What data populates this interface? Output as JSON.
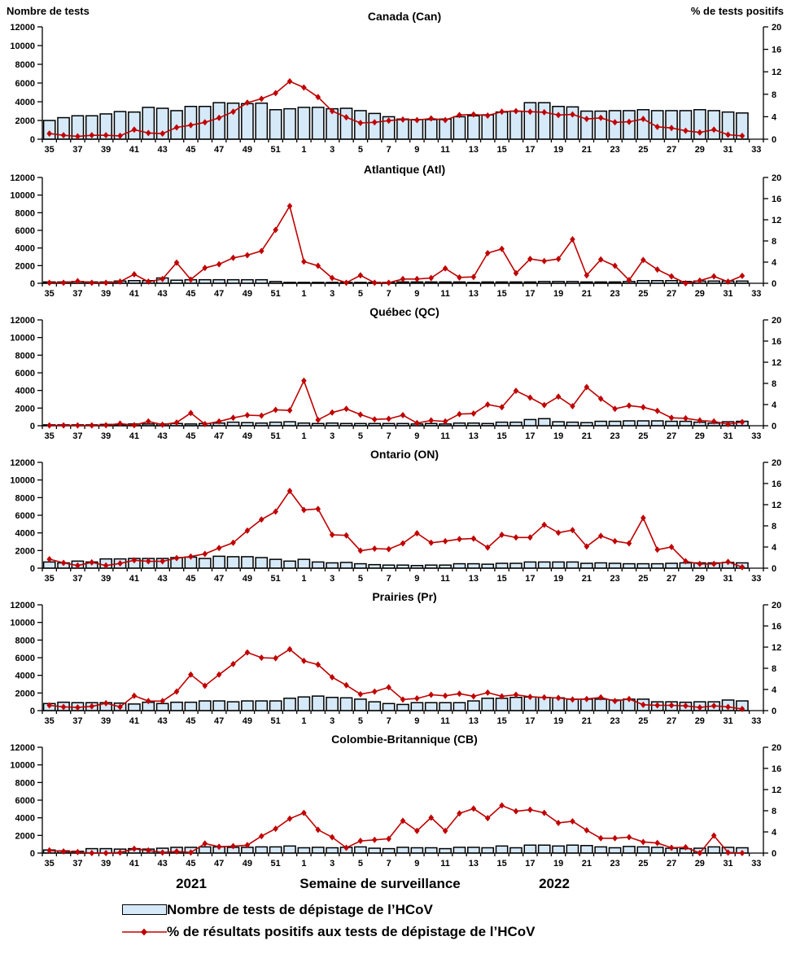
{
  "header": {
    "left": "Nombre de tests",
    "right": "% de tests positifs"
  },
  "bottom": {
    "year_left": "2021",
    "axis_title": "Semaine de surveillance",
    "year_right": "2022"
  },
  "legend": {
    "tests_label": "Nombre de tests de dépistage de l’HCoV",
    "pct_label": "% de résultats positifs aux tests de dépistage de l’HCoV"
  },
  "colors": {
    "bar_fill": "#d6e9f8",
    "bar_stroke": "#000000",
    "line": "#c00000"
  },
  "chart_data": {
    "type": "bar+line",
    "x_label": "Semaine de surveillance",
    "x_weeks": [
      35,
      36,
      37,
      38,
      39,
      40,
      41,
      42,
      43,
      44,
      45,
      46,
      47,
      48,
      49,
      50,
      51,
      52,
      1,
      2,
      3,
      4,
      5,
      6,
      7,
      8,
      9,
      10,
      11,
      12,
      13,
      14,
      15,
      16,
      17,
      18,
      19,
      20,
      21,
      22,
      23,
      24,
      25,
      26,
      27,
      28,
      29,
      30,
      31,
      32
    ],
    "x_tick_labels": [
      "35",
      "37",
      "39",
      "41",
      "43",
      "45",
      "47",
      "49",
      "51",
      "1",
      "3",
      "5",
      "7",
      "9",
      "11",
      "13",
      "15",
      "17",
      "19",
      "21",
      "23",
      "25",
      "27",
      "29",
      "31",
      "33"
    ],
    "y_left": {
      "label": "Nombre de tests",
      "min": 0,
      "max": 12000,
      "ticks": [
        0,
        2000,
        4000,
        6000,
        8000,
        10000,
        12000
      ]
    },
    "y_right": {
      "label": "% de tests positifs",
      "min": 0,
      "max": 20,
      "ticks": [
        0,
        4,
        8,
        12,
        16,
        20
      ]
    },
    "grid": false,
    "legend_position": "bottom",
    "panels": [
      {
        "title": "Canada (Can)",
        "tests": [
          2000,
          2300,
          2500,
          2500,
          2700,
          2950,
          2900,
          3400,
          3300,
          3050,
          3500,
          3500,
          3900,
          3850,
          3800,
          3850,
          3150,
          3250,
          3400,
          3400,
          3250,
          3300,
          3050,
          2750,
          2400,
          2150,
          2100,
          2100,
          2150,
          2400,
          2500,
          2600,
          2900,
          3000,
          3900,
          3900,
          3500,
          3450,
          3000,
          3000,
          3050,
          3050,
          3150,
          3050,
          3050,
          3050,
          3150,
          3050,
          2900,
          2800
        ],
        "pct": [
          1.0,
          0.7,
          0.5,
          0.7,
          0.7,
          0.6,
          1.7,
          1.1,
          1.0,
          2.1,
          2.5,
          3.0,
          3.8,
          4.9,
          6.5,
          7.2,
          8.2,
          10.3,
          9.2,
          7.5,
          5.0,
          3.9,
          2.9,
          3.0,
          3.3,
          3.5,
          3.4,
          3.7,
          3.4,
          4.3,
          4.4,
          4.2,
          4.9,
          5.0,
          4.9,
          4.8,
          4.3,
          4.4,
          3.6,
          3.8,
          3.0,
          3.1,
          3.6,
          2.2,
          2.0,
          1.5,
          1.2,
          1.7,
          0.8,
          0.6
        ]
      },
      {
        "title": "Atlantique (Atl)",
        "tests": [
          150,
          150,
          200,
          150,
          150,
          250,
          300,
          300,
          600,
          350,
          400,
          400,
          400,
          400,
          400,
          400,
          200,
          100,
          100,
          100,
          100,
          100,
          100,
          100,
          100,
          150,
          150,
          150,
          150,
          150,
          100,
          150,
          150,
          150,
          150,
          200,
          200,
          200,
          150,
          150,
          150,
          200,
          300,
          300,
          300,
          200,
          250,
          250,
          250,
          250
        ],
        "pct": [
          0.1,
          0.1,
          0.4,
          0.1,
          0.1,
          0.3,
          1.7,
          0.3,
          0.8,
          3.9,
          0.7,
          2.9,
          3.6,
          4.8,
          5.3,
          6.1,
          10.1,
          14.6,
          4.1,
          3.3,
          1.0,
          0.1,
          1.5,
          0.1,
          0.1,
          0.8,
          0.8,
          1.0,
          2.8,
          1.1,
          1.2,
          5.7,
          6.5,
          1.9,
          4.6,
          4.2,
          4.6,
          8.3,
          1.5,
          4.5,
          3.3,
          0.6,
          4.4,
          2.6,
          1.3,
          0.0,
          0.5,
          1.3,
          0.3,
          1.4
        ]
      },
      {
        "title": "Québec (QC)",
        "tests": [
          100,
          100,
          100,
          100,
          150,
          150,
          200,
          200,
          200,
          250,
          200,
          250,
          300,
          400,
          350,
          300,
          400,
          450,
          300,
          250,
          300,
          250,
          250,
          250,
          250,
          250,
          200,
          250,
          200,
          300,
          300,
          250,
          400,
          400,
          700,
          800,
          450,
          400,
          350,
          500,
          500,
          550,
          550,
          550,
          500,
          500,
          400,
          300,
          450,
          500
        ],
        "pct": [
          0.05,
          0.05,
          0.05,
          0.05,
          0.1,
          0.4,
          0.1,
          0.8,
          0.2,
          0.6,
          2.4,
          0.3,
          0.8,
          1.5,
          2.0,
          1.9,
          3.0,
          2.9,
          8.5,
          1.1,
          2.5,
          3.2,
          2.1,
          1.2,
          1.3,
          2.0,
          0.5,
          1.0,
          0.8,
          2.2,
          2.3,
          4.0,
          3.5,
          6.6,
          5.3,
          3.9,
          5.5,
          3.7,
          7.3,
          5.1,
          3.2,
          3.8,
          3.5,
          2.8,
          1.5,
          1.4,
          1.0,
          0.8,
          0.3,
          0.7
        ]
      },
      {
        "title": "Ontario (ON)",
        "tests": [
          700,
          600,
          800,
          700,
          1050,
          1050,
          1100,
          1100,
          1100,
          1200,
          1250,
          1100,
          1350,
          1300,
          1300,
          1200,
          1000,
          800,
          1000,
          700,
          600,
          650,
          500,
          400,
          350,
          350,
          300,
          350,
          350,
          500,
          500,
          450,
          550,
          550,
          700,
          700,
          700,
          700,
          550,
          600,
          550,
          500,
          500,
          500,
          550,
          600,
          600,
          600,
          650,
          600
        ],
        "pct": [
          1.7,
          1.0,
          0.5,
          1.1,
          0.5,
          0.9,
          1.5,
          1.3,
          1.3,
          1.9,
          2.2,
          2.7,
          3.8,
          4.8,
          7.1,
          9.2,
          10.7,
          14.6,
          11.0,
          11.2,
          6.3,
          6.2,
          3.3,
          3.7,
          3.6,
          4.7,
          6.6,
          4.8,
          5.1,
          5.5,
          5.6,
          3.9,
          6.3,
          5.8,
          5.8,
          8.2,
          6.7,
          7.2,
          4.1,
          6.1,
          5.1,
          4.7,
          9.5,
          3.5,
          4.0,
          1.3,
          0.8,
          0.8,
          1.2,
          0.2
        ]
      },
      {
        "title": "Prairies (Pr)",
        "tests": [
          800,
          950,
          900,
          900,
          900,
          850,
          750,
          950,
          800,
          950,
          950,
          1100,
          1100,
          1000,
          1100,
          1100,
          1100,
          1400,
          1550,
          1650,
          1500,
          1450,
          1300,
          1000,
          800,
          700,
          900,
          900,
          900,
          900,
          1100,
          1400,
          1400,
          1500,
          1550,
          1500,
          1450,
          1300,
          1300,
          1300,
          1200,
          1300,
          1300,
          1000,
          1000,
          950,
          1000,
          1000,
          1200,
          1100
        ],
        "pct": [
          1.0,
          0.7,
          0.6,
          0.8,
          1.4,
          0.7,
          2.8,
          1.8,
          1.8,
          3.6,
          6.8,
          4.7,
          6.8,
          8.8,
          11.0,
          10.0,
          9.9,
          11.6,
          9.4,
          8.7,
          6.3,
          4.8,
          3.1,
          3.6,
          4.4,
          2.1,
          2.3,
          3.0,
          2.8,
          3.2,
          2.7,
          3.4,
          2.7,
          3.0,
          2.6,
          2.5,
          2.4,
          2.1,
          2.2,
          2.5,
          1.8,
          2.2,
          1.1,
          1.0,
          1.0,
          0.9,
          0.6,
          0.9,
          0.7,
          0.3
        ]
      },
      {
        "title": "Colombie-Britannique (CB)",
        "tests": [
          350,
          250,
          200,
          500,
          500,
          450,
          500,
          450,
          550,
          650,
          650,
          700,
          700,
          650,
          650,
          700,
          700,
          800,
          600,
          650,
          600,
          650,
          700,
          550,
          500,
          650,
          600,
          600,
          500,
          650,
          650,
          600,
          800,
          600,
          900,
          900,
          800,
          900,
          850,
          700,
          600,
          750,
          700,
          650,
          550,
          500,
          550,
          700,
          650,
          600
        ],
        "pct": [
          0.5,
          0.3,
          0.2,
          0.0,
          0.0,
          0.1,
          0.8,
          0.5,
          0.1,
          0.3,
          0.1,
          1.8,
          1.2,
          1.3,
          1.5,
          3.2,
          4.6,
          6.5,
          7.6,
          4.4,
          3.0,
          1.0,
          2.3,
          2.5,
          2.7,
          6.1,
          4.2,
          6.7,
          4.2,
          7.5,
          8.4,
          6.6,
          9.0,
          7.9,
          8.2,
          7.6,
          5.7,
          6.0,
          4.3,
          2.8,
          2.8,
          3.0,
          2.1,
          1.9,
          1.0,
          1.1,
          0.0,
          3.3,
          0.1,
          0.0
        ]
      }
    ]
  }
}
